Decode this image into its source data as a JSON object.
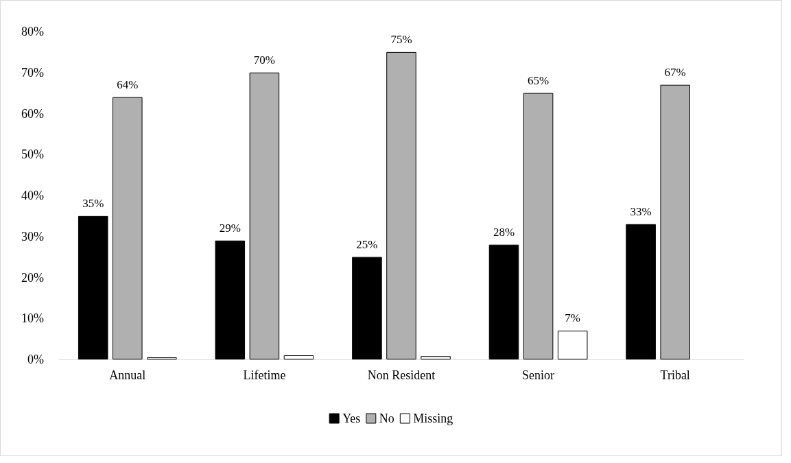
{
  "chart_data": {
    "type": "bar",
    "categories": [
      "Annual",
      "Lifetime",
      "Non Resident",
      "Senior",
      "Tribal"
    ],
    "series": [
      {
        "name": "Yes",
        "color": "#000000",
        "values": [
          35,
          29,
          25,
          28,
          33
        ],
        "value_labels": [
          "35%",
          "29%",
          "25%",
          "28%",
          "33%"
        ]
      },
      {
        "name": "No",
        "color": "#b0b0b0",
        "values": [
          64,
          70,
          75,
          65,
          67
        ],
        "value_labels": [
          "64%",
          "70%",
          "75%",
          "65%",
          "67%"
        ]
      },
      {
        "name": "Missing",
        "color": "#ffffff",
        "values": [
          0.5,
          1,
          0.8,
          7,
          null
        ],
        "value_labels": [
          null,
          null,
          null,
          "7%",
          null
        ]
      }
    ],
    "ylim": [
      0,
      80
    ],
    "yticks": [
      {
        "value": 0,
        "label": "0%"
      },
      {
        "value": 10,
        "label": "10%"
      },
      {
        "value": 20,
        "label": "20%"
      },
      {
        "value": 30,
        "label": "30%"
      },
      {
        "value": 40,
        "label": "40%"
      },
      {
        "value": 50,
        "label": "50%"
      },
      {
        "value": 60,
        "label": "60%"
      },
      {
        "value": 70,
        "label": "70%"
      },
      {
        "value": 80,
        "label": "80%"
      }
    ],
    "grid": false,
    "legend": "bottom"
  }
}
